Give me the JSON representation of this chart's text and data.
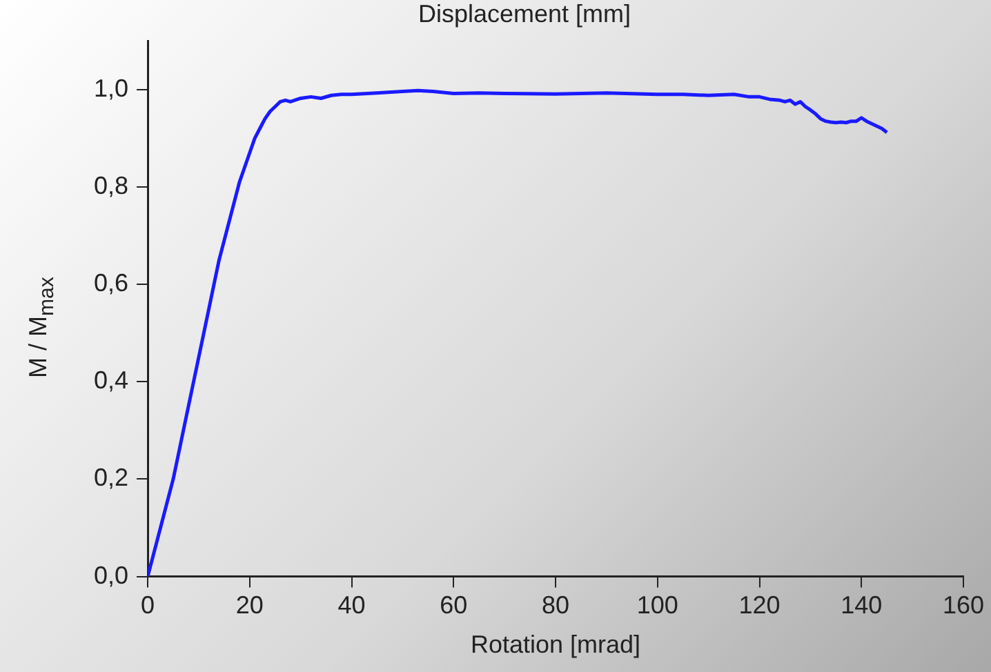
{
  "chart_data": {
    "type": "line",
    "title": "Displacement [mm]",
    "xlabel": "Rotation [mrad]",
    "ylabel": "M / M$_{max}$",
    "x": [
      0,
      1,
      2,
      3,
      4,
      5,
      6,
      7,
      8,
      9,
      10,
      11,
      12,
      13,
      14,
      15,
      16,
      17,
      18,
      19,
      20,
      21,
      22,
      23,
      24,
      25,
      26,
      27,
      28,
      30,
      32,
      34,
      36,
      38,
      40,
      45,
      50,
      53,
      56,
      60,
      65,
      70,
      80,
      90,
      100,
      105,
      110,
      115,
      118,
      120,
      122,
      124,
      125,
      126,
      127,
      128,
      129,
      130,
      131,
      132,
      133,
      134,
      135,
      136,
      137,
      138,
      139,
      140,
      141,
      142,
      143,
      144,
      145
    ],
    "series": [
      {
        "color": "#1a1aff",
        "values": [
          0,
          0.04,
          0.08,
          0.12,
          0.16,
          0.2,
          0.25,
          0.3,
          0.35,
          0.4,
          0.45,
          0.5,
          0.55,
          0.6,
          0.65,
          0.69,
          0.73,
          0.77,
          0.81,
          0.84,
          0.87,
          0.9,
          0.92,
          0.94,
          0.955,
          0.965,
          0.975,
          0.978,
          0.975,
          0.982,
          0.985,
          0.982,
          0.988,
          0.99,
          0.99,
          0.993,
          0.996,
          0.998,
          0.996,
          0.992,
          0.993,
          0.992,
          0.991,
          0.993,
          0.99,
          0.99,
          0.988,
          0.99,
          0.985,
          0.985,
          0.98,
          0.978,
          0.975,
          0.978,
          0.97,
          0.975,
          0.965,
          0.958,
          0.95,
          0.94,
          0.935,
          0.933,
          0.932,
          0.933,
          0.932,
          0.935,
          0.935,
          0.942,
          0.935,
          0.93,
          0.925,
          0.92,
          0.912
        ]
      }
    ],
    "xlim": [
      0,
      160
    ],
    "xticks": [
      0,
      20,
      40,
      60,
      80,
      100,
      120,
      140,
      160
    ],
    "ylim": [
      0,
      1.1
    ],
    "yticks": [
      {
        "value": 0,
        "label": "0,0"
      },
      {
        "value": 0.2,
        "label": "0,2"
      },
      {
        "value": 0.4,
        "label": "0,4"
      },
      {
        "value": 0.6,
        "label": "0,6"
      },
      {
        "value": 0.8,
        "label": "0,8"
      },
      {
        "value": 1,
        "label": "1,0"
      }
    ],
    "grid": false,
    "legend": false,
    "marker": "none",
    "line_style": "solid"
  }
}
